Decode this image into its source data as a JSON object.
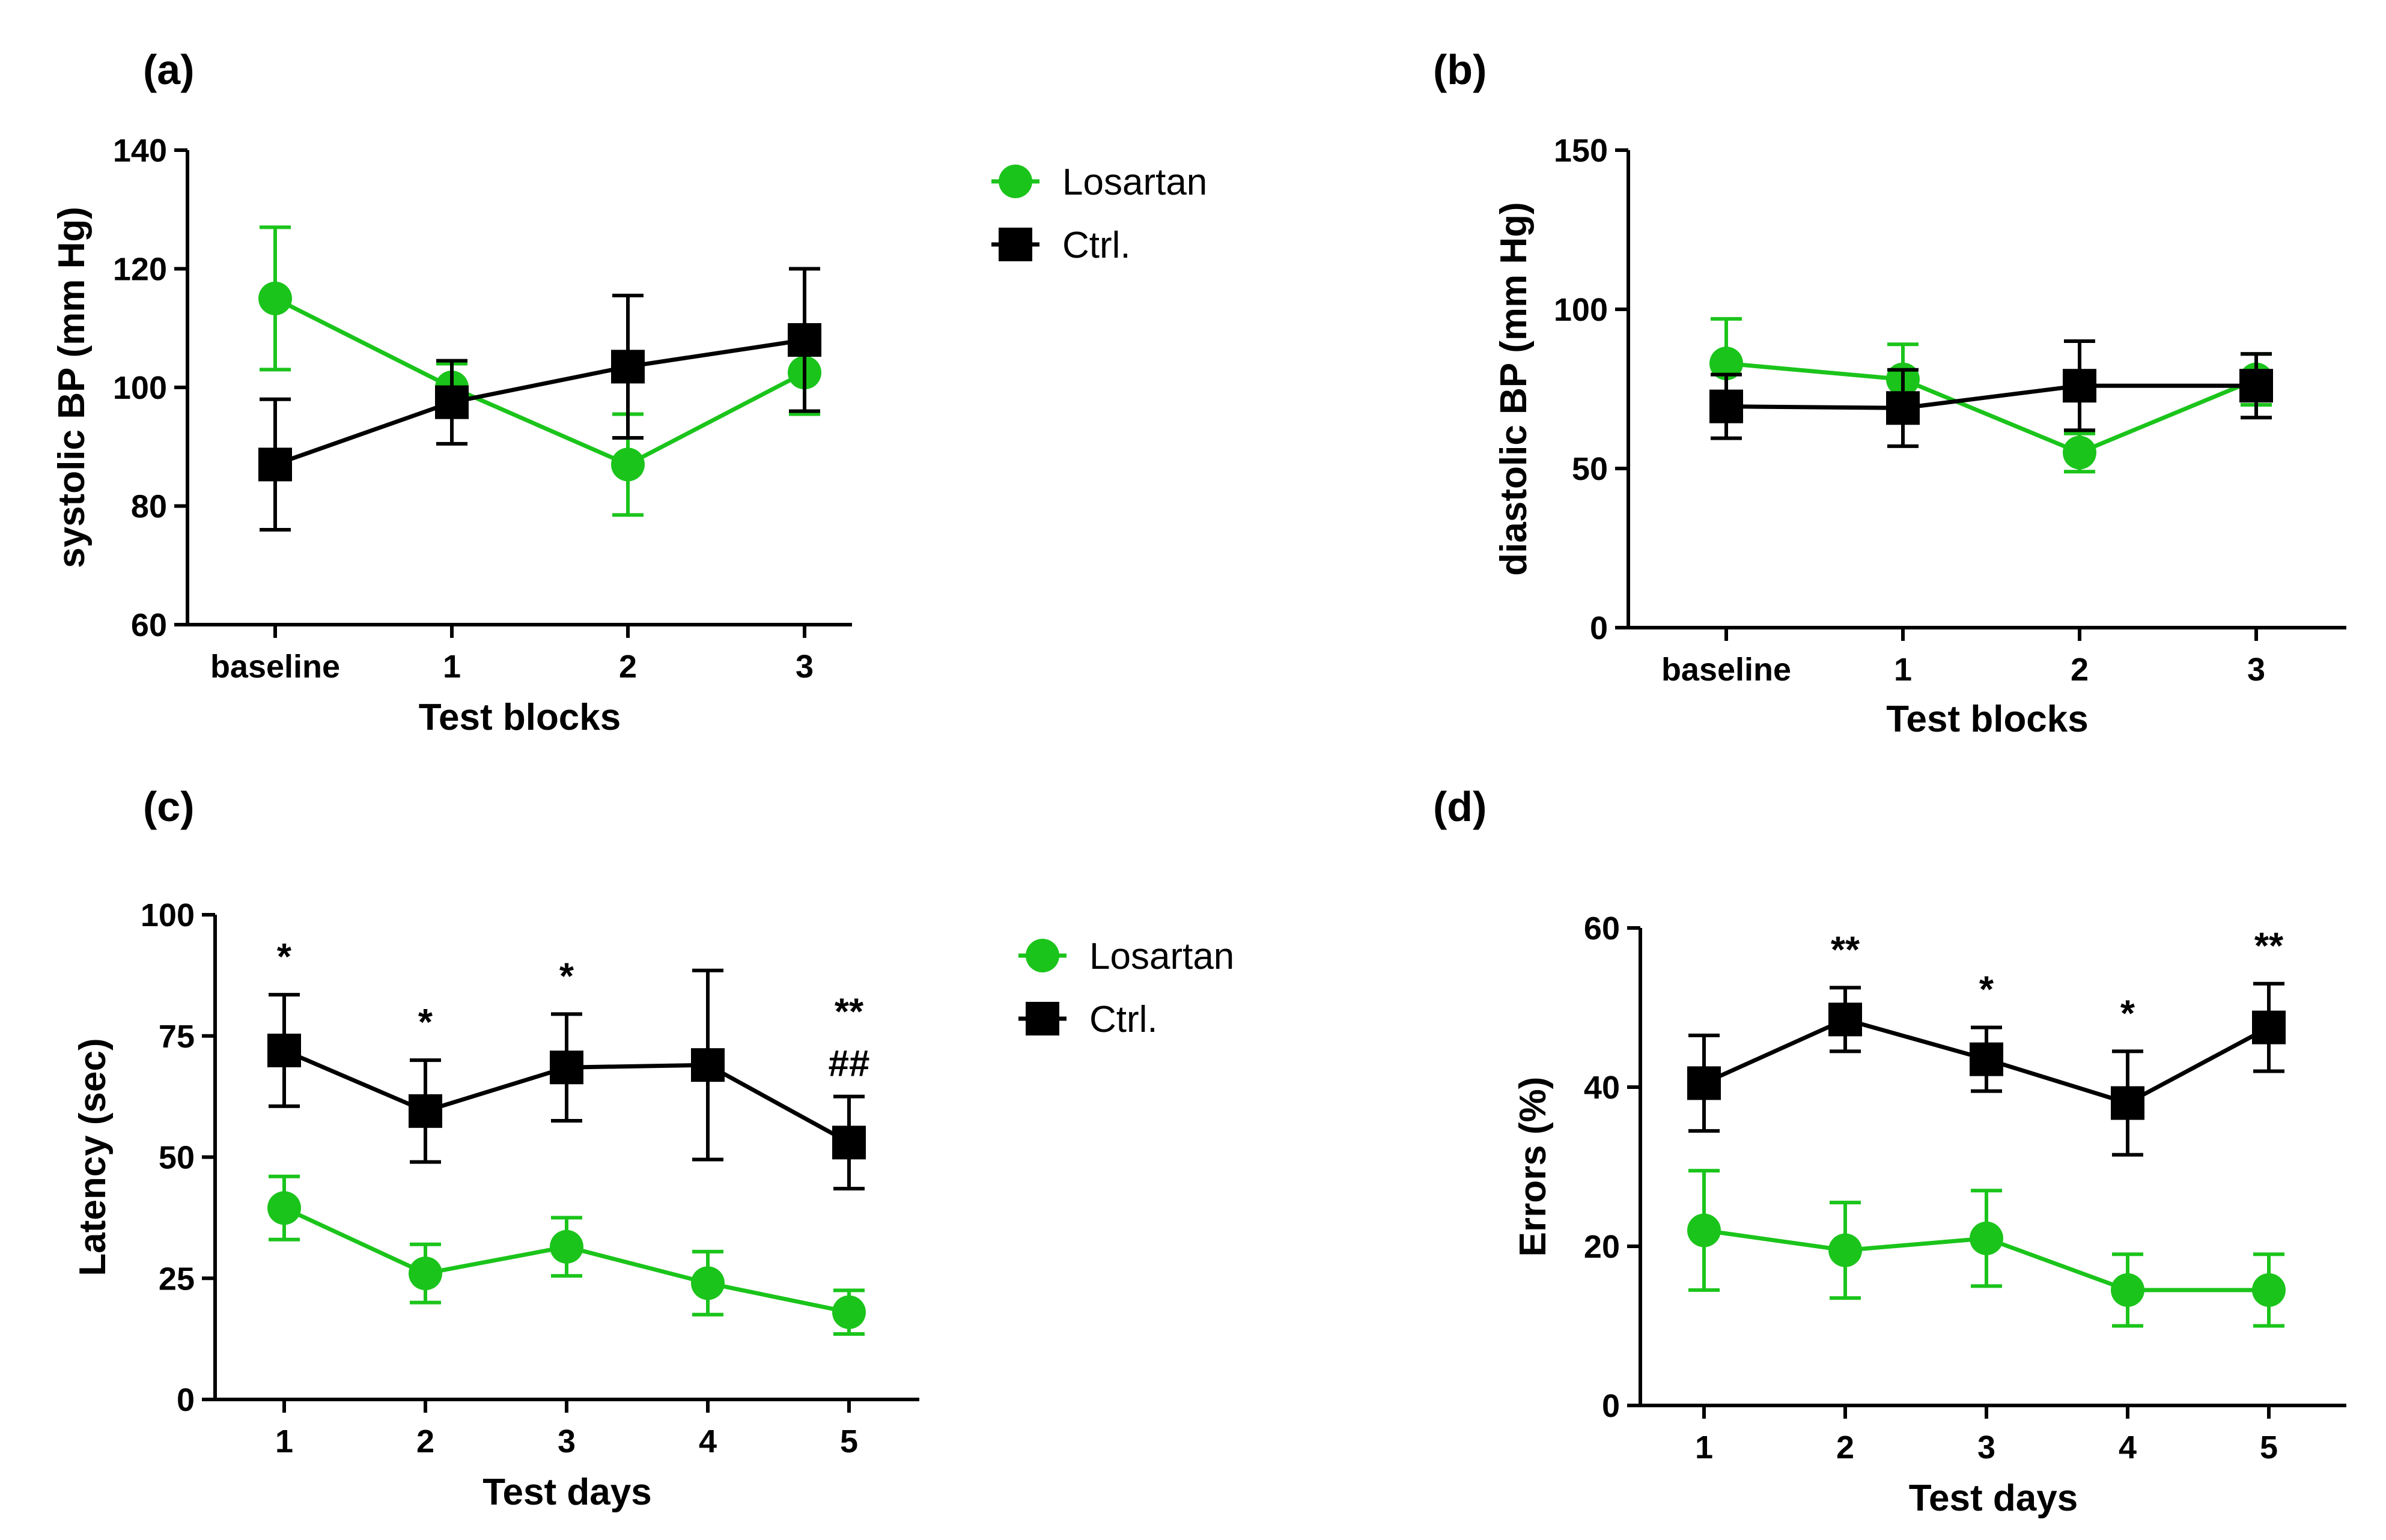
{
  "colors": {
    "losartan": "#1bc41b",
    "ctrl": "#000000"
  },
  "legend": [
    {
      "name": "Losartan",
      "marker": "circle",
      "color": "#1bc41b"
    },
    {
      "name": "Ctrl.",
      "marker": "square",
      "color": "#000000"
    }
  ],
  "chart_data": [
    {
      "panel": "(a)",
      "type": "line",
      "categories": [
        "baseline",
        "1",
        "2",
        "3"
      ],
      "xlabel": "Test blocks",
      "ylabel": "systolic BP (mm Hg)",
      "ylim": [
        60,
        140
      ],
      "yticks": [
        60,
        80,
        100,
        120,
        140
      ],
      "series": [
        {
          "name": "Losartan",
          "values": [
            115,
            100,
            87,
            102.5
          ],
          "err": [
            12,
            4,
            8.5,
            7
          ]
        },
        {
          "name": "Ctrl.",
          "values": [
            87,
            97.5,
            103.5,
            108
          ],
          "err": [
            11,
            7,
            12,
            12
          ]
        }
      ],
      "annotations": []
    },
    {
      "panel": "(b)",
      "type": "line",
      "categories": [
        "baseline",
        "1",
        "2",
        "3"
      ],
      "xlabel": "Test blocks",
      "ylabel": "diastolic BP (mm Hg)",
      "ylim": [
        0,
        150
      ],
      "yticks": [
        0,
        50,
        100,
        150
      ],
      "series": [
        {
          "name": "Losartan",
          "values": [
            83,
            78,
            55,
            78
          ],
          "err": [
            14,
            11,
            6,
            8
          ]
        },
        {
          "name": "Ctrl.",
          "values": [
            69.5,
            69,
            76,
            76
          ],
          "err": [
            10,
            12,
            14,
            10
          ]
        }
      ],
      "annotations": []
    },
    {
      "panel": "(c)",
      "type": "line",
      "categories": [
        "1",
        "2",
        "3",
        "4",
        "5"
      ],
      "xlabel": "Test days",
      "ylabel": "Latency (sec)",
      "ylim": [
        0,
        100
      ],
      "yticks": [
        0,
        25,
        50,
        75,
        100
      ],
      "series": [
        {
          "name": "Losartan",
          "values": [
            39.5,
            26,
            31.5,
            24,
            18
          ],
          "err": [
            6.5,
            6,
            6,
            6.5,
            4.5
          ]
        },
        {
          "name": "Ctrl.",
          "values": [
            72,
            59.5,
            68.5,
            69,
            53
          ],
          "err": [
            11.5,
            10.5,
            11,
            19.5,
            9.5
          ]
        }
      ],
      "annotations": [
        {
          "category": "1",
          "lines": [
            "*"
          ],
          "above": 83.5
        },
        {
          "category": "2",
          "lines": [
            "*"
          ],
          "above": 70
        },
        {
          "category": "3",
          "lines": [
            "*"
          ],
          "above": 79.5
        },
        {
          "category": "5",
          "lines": [
            "**",
            "##"
          ],
          "above": 62.5
        }
      ]
    },
    {
      "panel": "(d)",
      "type": "line",
      "categories": [
        "1",
        "2",
        "3",
        "4",
        "5"
      ],
      "xlabel": "Test days",
      "ylabel": "Errors (%)",
      "ylim": [
        0,
        60
      ],
      "yticks": [
        0,
        20,
        40,
        60
      ],
      "series": [
        {
          "name": "Losartan",
          "values": [
            22,
            19.5,
            21,
            14.5,
            14.5
          ],
          "err": [
            7.5,
            6,
            6,
            4.5,
            4.5
          ]
        },
        {
          "name": "Ctrl.",
          "values": [
            40.5,
            48.5,
            43.5,
            38,
            47.5
          ],
          "err": [
            6,
            4,
            4,
            6.5,
            5.5
          ]
        }
      ],
      "annotations": [
        {
          "category": "2",
          "lines": [
            "**"
          ],
          "above": 52.5
        },
        {
          "category": "3",
          "lines": [
            "*"
          ],
          "above": 47.5
        },
        {
          "category": "4",
          "lines": [
            "*"
          ],
          "above": 44.5
        },
        {
          "category": "5",
          "lines": [
            "**"
          ],
          "above": 53
        }
      ]
    }
  ]
}
